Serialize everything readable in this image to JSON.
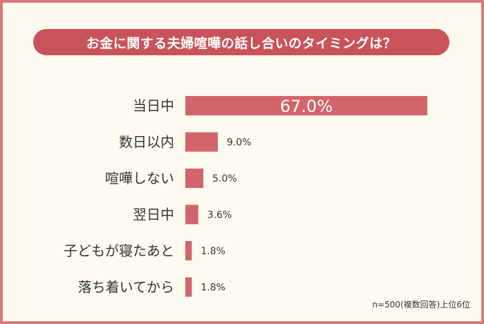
{
  "colors": {
    "border": "#d9797b",
    "background": "#fdfbef",
    "title_bg": "#c9535a",
    "bar": "#d2646b",
    "text": "#333333",
    "highlight_label": "#ffffff"
  },
  "header": {
    "title": "お金に関する夫婦喧嘩の話し合いのタイミングは？"
  },
  "footnote": "n=500(複数回答)上位6位",
  "chart_data": {
    "type": "bar",
    "orientation": "horizontal",
    "title": "お金に関する夫婦喧嘩の話し合いのタイミングは？",
    "categories": [
      "当日中",
      "数日以内",
      "喧嘩しない",
      "翌日中",
      "子どもが寝たあと",
      "落ち着いてから"
    ],
    "values": [
      67.0,
      9.0,
      5.0,
      3.6,
      1.8,
      1.8
    ],
    "value_labels": [
      "67.0%",
      "9.0%",
      "5.0%",
      "3.6%",
      "1.8%",
      "1.8%"
    ],
    "unit": "%",
    "grid": false,
    "legend": "none"
  }
}
